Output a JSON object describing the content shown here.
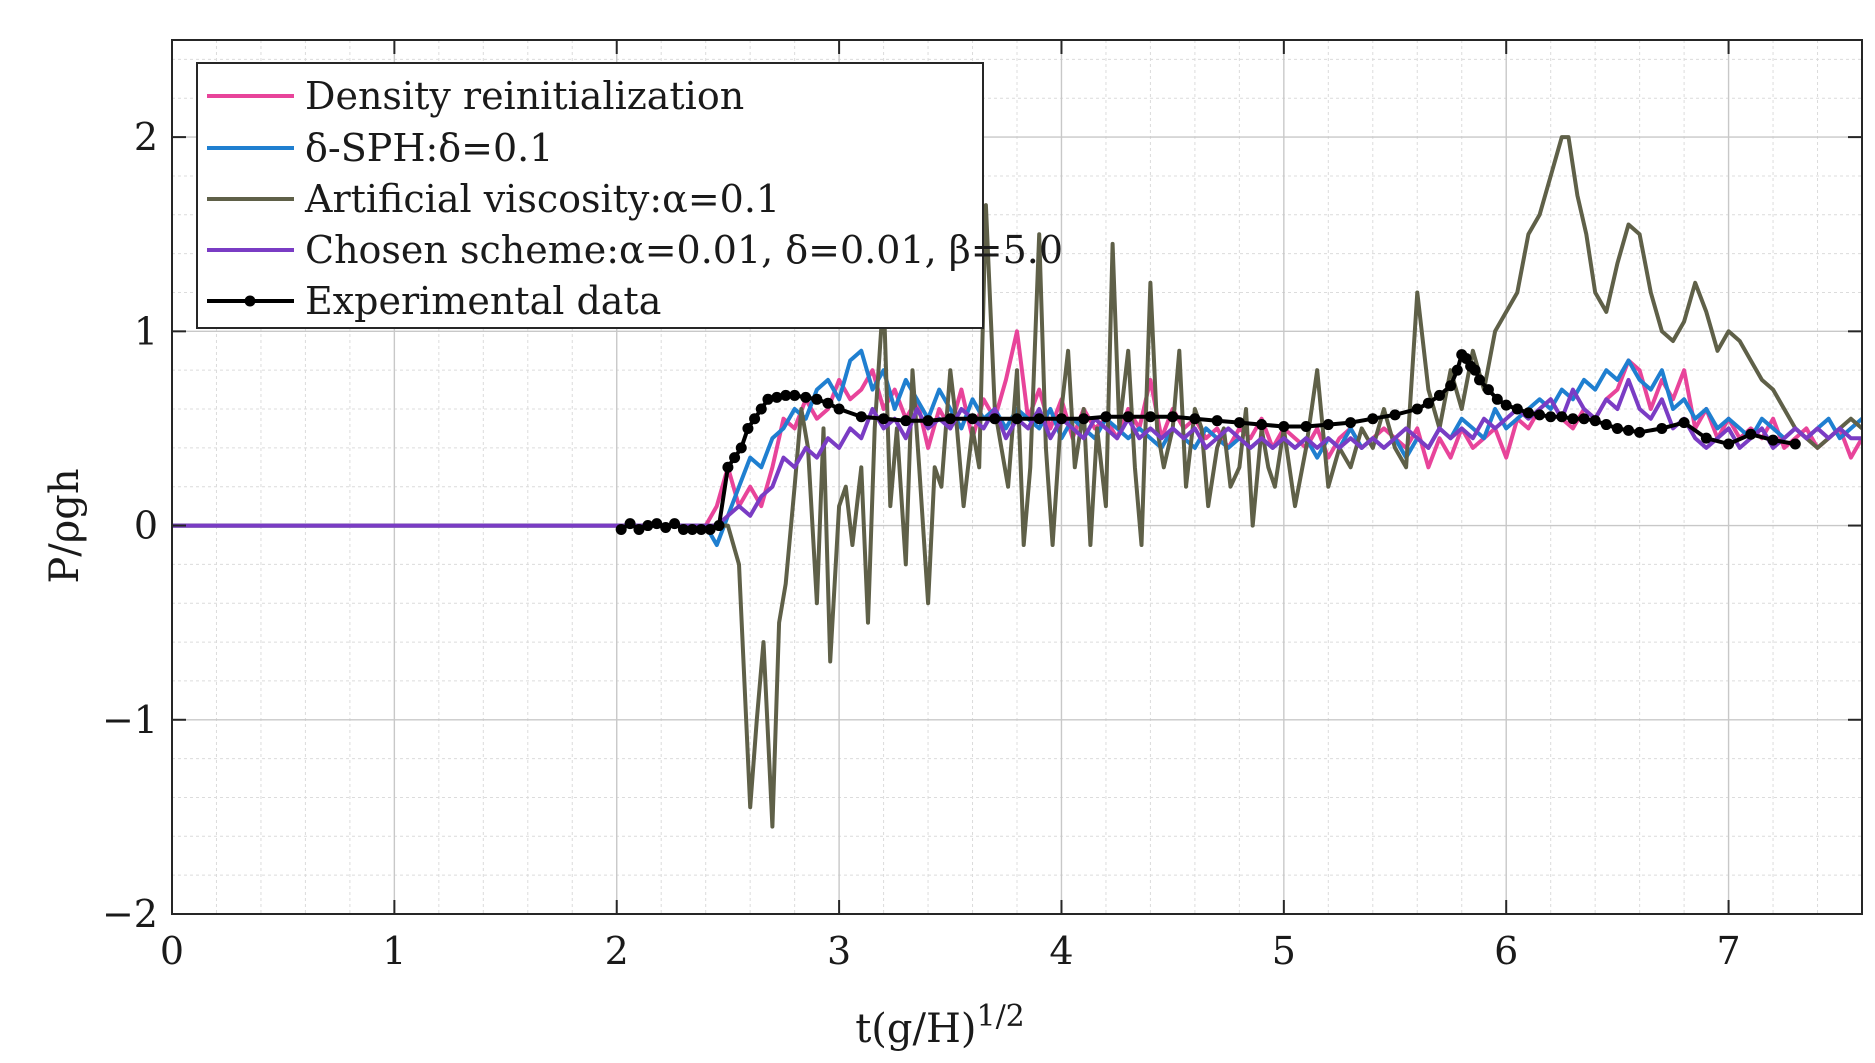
{
  "chart_data": {
    "type": "line",
    "xlabel": "t(g/H)",
    "xlabel_exponent": "1/2",
    "ylabel": "P/ρgh",
    "xlim": [
      0,
      7.6
    ],
    "ylim": [
      -2,
      2.5
    ],
    "xticks": [
      0,
      1,
      2,
      3,
      4,
      5,
      6,
      7
    ],
    "yticks": [
      -2,
      -1,
      0,
      1,
      2
    ],
    "xtick_labels": [
      "0",
      "1",
      "2",
      "3",
      "4",
      "5",
      "6",
      "7"
    ],
    "ytick_labels": [
      "−2",
      "−1",
      "0",
      "1",
      "2"
    ],
    "grid": true,
    "minor_grid": true,
    "legend_location": "top-left",
    "series": [
      {
        "name": "Density reinitialization",
        "color": "#e8449a",
        "marker": false,
        "x": [
          0,
          2.4,
          2.45,
          2.5,
          2.55,
          2.6,
          2.65,
          2.7,
          2.75,
          2.8,
          2.85,
          2.9,
          2.95,
          3.0,
          3.05,
          3.1,
          3.15,
          3.2,
          3.25,
          3.3,
          3.35,
          3.4,
          3.45,
          3.5,
          3.55,
          3.6,
          3.65,
          3.7,
          3.75,
          3.8,
          3.85,
          3.9,
          3.95,
          4.0,
          4.05,
          4.1,
          4.15,
          4.2,
          4.25,
          4.3,
          4.35,
          4.4,
          4.45,
          4.5,
          4.55,
          4.6,
          4.65,
          4.7,
          4.75,
          4.8,
          4.85,
          4.9,
          4.95,
          5.0,
          5.05,
          5.1,
          5.15,
          5.2,
          5.25,
          5.3,
          5.35,
          5.4,
          5.45,
          5.5,
          5.55,
          5.6,
          5.65,
          5.7,
          5.75,
          5.8,
          5.85,
          5.9,
          5.95,
          6.0,
          6.05,
          6.1,
          6.15,
          6.2,
          6.25,
          6.3,
          6.35,
          6.4,
          6.45,
          6.5,
          6.55,
          6.6,
          6.65,
          6.7,
          6.75,
          6.8,
          6.85,
          6.9,
          6.95,
          7.0,
          7.05,
          7.1,
          7.15,
          7.2,
          7.25,
          7.3,
          7.35,
          7.4,
          7.45,
          7.5,
          7.55,
          7.6
        ],
        "y": [
          0,
          0,
          0.1,
          0.3,
          0.1,
          0.2,
          0.1,
          0.3,
          0.55,
          0.5,
          0.65,
          0.55,
          0.6,
          0.75,
          0.65,
          0.7,
          0.8,
          0.6,
          0.7,
          0.55,
          0.65,
          0.4,
          0.6,
          0.5,
          0.7,
          0.45,
          0.65,
          0.55,
          0.75,
          1.0,
          0.55,
          0.7,
          0.5,
          0.65,
          0.45,
          0.6,
          0.5,
          0.55,
          0.45,
          0.6,
          0.5,
          0.75,
          0.45,
          0.6,
          0.5,
          0.55,
          0.45,
          0.5,
          0.4,
          0.5,
          0.45,
          0.55,
          0.4,
          0.5,
          0.45,
          0.4,
          0.5,
          0.35,
          0.45,
          0.5,
          0.4,
          0.45,
          0.5,
          0.45,
          0.4,
          0.5,
          0.3,
          0.45,
          0.35,
          0.5,
          0.4,
          0.45,
          0.5,
          0.35,
          0.55,
          0.5,
          0.6,
          0.65,
          0.55,
          0.5,
          0.6,
          0.55,
          0.65,
          0.7,
          0.85,
          0.8,
          0.6,
          0.75,
          0.65,
          0.8,
          0.5,
          0.6,
          0.45,
          0.55,
          0.45,
          0.5,
          0.45,
          0.55,
          0.4,
          0.45,
          0.5,
          0.4,
          0.45,
          0.5,
          0.35,
          0.45
        ]
      },
      {
        "name": "δ-SPH:δ=0.1",
        "color": "#1f7fd0",
        "marker": false,
        "x": [
          0,
          2.4,
          2.45,
          2.5,
          2.55,
          2.6,
          2.65,
          2.7,
          2.75,
          2.8,
          2.85,
          2.9,
          2.95,
          3.0,
          3.05,
          3.1,
          3.15,
          3.2,
          3.25,
          3.3,
          3.35,
          3.4,
          3.45,
          3.5,
          3.55,
          3.6,
          3.65,
          3.7,
          3.75,
          3.8,
          3.85,
          3.9,
          3.95,
          4.0,
          4.05,
          4.1,
          4.15,
          4.2,
          4.25,
          4.3,
          4.35,
          4.4,
          4.45,
          4.5,
          4.55,
          4.6,
          4.65,
          4.7,
          4.75,
          4.8,
          4.85,
          4.9,
          4.95,
          5.0,
          5.05,
          5.1,
          5.15,
          5.2,
          5.25,
          5.3,
          5.35,
          5.4,
          5.45,
          5.5,
          5.55,
          5.6,
          5.65,
          5.7,
          5.75,
          5.8,
          5.85,
          5.9,
          5.95,
          6.0,
          6.05,
          6.1,
          6.15,
          6.2,
          6.25,
          6.3,
          6.35,
          6.4,
          6.45,
          6.5,
          6.55,
          6.6,
          6.65,
          6.7,
          6.75,
          6.8,
          6.85,
          6.9,
          6.95,
          7.0,
          7.05,
          7.1,
          7.15,
          7.2,
          7.25,
          7.3,
          7.35,
          7.4,
          7.45,
          7.5,
          7.55,
          7.6
        ],
        "y": [
          0,
          0,
          -0.1,
          0.05,
          0.2,
          0.35,
          0.3,
          0.45,
          0.5,
          0.6,
          0.55,
          0.7,
          0.75,
          0.65,
          0.85,
          0.9,
          0.7,
          0.8,
          0.6,
          0.75,
          0.65,
          0.55,
          0.7,
          0.6,
          0.5,
          0.65,
          0.55,
          0.6,
          0.5,
          0.6,
          0.55,
          0.5,
          0.6,
          0.45,
          0.55,
          0.5,
          0.45,
          0.55,
          0.5,
          0.45,
          0.5,
          0.45,
          0.4,
          0.5,
          0.45,
          0.4,
          0.5,
          0.45,
          0.4,
          0.45,
          0.4,
          0.45,
          0.4,
          0.45,
          0.4,
          0.45,
          0.35,
          0.45,
          0.4,
          0.5,
          0.4,
          0.45,
          0.4,
          0.45,
          0.35,
          0.45,
          0.4,
          0.5,
          0.45,
          0.55,
          0.5,
          0.45,
          0.6,
          0.5,
          0.55,
          0.6,
          0.65,
          0.6,
          0.7,
          0.65,
          0.75,
          0.7,
          0.8,
          0.75,
          0.85,
          0.75,
          0.7,
          0.8,
          0.6,
          0.65,
          0.55,
          0.6,
          0.5,
          0.55,
          0.5,
          0.45,
          0.55,
          0.5,
          0.45,
          0.5,
          0.45,
          0.5,
          0.55,
          0.45,
          0.5,
          0.55
        ]
      },
      {
        "name": "Artificial viscosity:α=0.1",
        "color": "#5f6048",
        "marker": false,
        "x": [
          0,
          2.5,
          2.55,
          2.6,
          2.63,
          2.66,
          2.7,
          2.73,
          2.76,
          2.8,
          2.83,
          2.86,
          2.9,
          2.93,
          2.96,
          3.0,
          3.03,
          3.06,
          3.1,
          3.13,
          3.16,
          3.2,
          3.23,
          3.26,
          3.3,
          3.33,
          3.36,
          3.4,
          3.43,
          3.46,
          3.5,
          3.53,
          3.56,
          3.6,
          3.63,
          3.66,
          3.7,
          3.73,
          3.76,
          3.8,
          3.83,
          3.86,
          3.9,
          3.93,
          3.96,
          4.0,
          4.03,
          4.06,
          4.1,
          4.13,
          4.16,
          4.2,
          4.23,
          4.26,
          4.3,
          4.33,
          4.36,
          4.4,
          4.43,
          4.46,
          4.5,
          4.53,
          4.56,
          4.6,
          4.63,
          4.66,
          4.7,
          4.73,
          4.76,
          4.8,
          4.83,
          4.86,
          4.9,
          4.93,
          4.96,
          5.0,
          5.05,
          5.1,
          5.15,
          5.2,
          5.25,
          5.3,
          5.35,
          5.4,
          5.45,
          5.5,
          5.55,
          5.6,
          5.65,
          5.7,
          5.75,
          5.8,
          5.85,
          5.9,
          5.95,
          6.0,
          6.05,
          6.1,
          6.15,
          6.2,
          6.25,
          6.28,
          6.32,
          6.36,
          6.4,
          6.45,
          6.5,
          6.55,
          6.6,
          6.65,
          6.7,
          6.75,
          6.8,
          6.85,
          6.9,
          6.95,
          7.0,
          7.05,
          7.1,
          7.15,
          7.2,
          7.25,
          7.3,
          7.35,
          7.4,
          7.45,
          7.5,
          7.55,
          7.6
        ],
        "y": [
          0,
          0,
          -0.2,
          -1.45,
          -1.0,
          -0.6,
          -1.55,
          -0.5,
          -0.3,
          0.2,
          0.6,
          0.4,
          -0.4,
          0.5,
          -0.7,
          0.1,
          0.2,
          -0.1,
          0.3,
          -0.5,
          0.5,
          1.2,
          0.1,
          0.5,
          -0.2,
          0.8,
          0.3,
          -0.4,
          0.3,
          0.2,
          0.8,
          0.5,
          0.1,
          0.5,
          0.3,
          1.65,
          0.6,
          0.4,
          0.2,
          0.8,
          -0.1,
          0.3,
          1.5,
          0.4,
          -0.1,
          0.6,
          0.9,
          0.3,
          0.6,
          -0.1,
          0.5,
          0.1,
          1.45,
          0.5,
          0.9,
          0.3,
          -0.1,
          1.25,
          0.5,
          0.3,
          0.5,
          0.9,
          0.2,
          0.6,
          0.5,
          0.1,
          0.4,
          0.5,
          0.2,
          0.3,
          0.6,
          0.0,
          0.5,
          0.3,
          0.2,
          0.5,
          0.1,
          0.4,
          0.8,
          0.2,
          0.4,
          0.3,
          0.5,
          0.4,
          0.6,
          0.4,
          0.3,
          1.2,
          0.7,
          0.5,
          0.8,
          0.6,
          0.9,
          0.7,
          1.0,
          1.1,
          1.2,
          1.5,
          1.6,
          1.8,
          2.0,
          2.0,
          1.7,
          1.5,
          1.2,
          1.1,
          1.35,
          1.55,
          1.5,
          1.2,
          1.0,
          0.95,
          1.05,
          1.25,
          1.1,
          0.9,
          1.0,
          0.95,
          0.85,
          0.75,
          0.7,
          0.6,
          0.5,
          0.45,
          0.4,
          0.45,
          0.5,
          0.55,
          0.5
        ]
      },
      {
        "name": "Chosen scheme:α=0.01, δ=0.01, β=5.0",
        "color": "#7a3cc4",
        "marker": false,
        "x": [
          0,
          2.45,
          2.5,
          2.55,
          2.6,
          2.65,
          2.7,
          2.75,
          2.8,
          2.85,
          2.9,
          2.95,
          3.0,
          3.05,
          3.1,
          3.15,
          3.2,
          3.25,
          3.3,
          3.35,
          3.4,
          3.45,
          3.5,
          3.55,
          3.6,
          3.65,
          3.7,
          3.75,
          3.8,
          3.85,
          3.9,
          3.95,
          4.0,
          4.05,
          4.1,
          4.15,
          4.2,
          4.25,
          4.3,
          4.35,
          4.4,
          4.45,
          4.5,
          4.55,
          4.6,
          4.65,
          4.7,
          4.75,
          4.8,
          4.85,
          4.9,
          4.95,
          5.0,
          5.05,
          5.1,
          5.15,
          5.2,
          5.25,
          5.3,
          5.35,
          5.4,
          5.45,
          5.5,
          5.55,
          5.6,
          5.65,
          5.7,
          5.75,
          5.8,
          5.85,
          5.9,
          5.95,
          6.0,
          6.05,
          6.1,
          6.15,
          6.2,
          6.25,
          6.3,
          6.35,
          6.4,
          6.45,
          6.5,
          6.55,
          6.6,
          6.65,
          6.7,
          6.75,
          6.8,
          6.85,
          6.9,
          6.95,
          7.0,
          7.05,
          7.1,
          7.15,
          7.2,
          7.25,
          7.3,
          7.35,
          7.4,
          7.45,
          7.5,
          7.55,
          7.6
        ],
        "y": [
          0,
          0,
          0.05,
          0.1,
          0.05,
          0.15,
          0.2,
          0.35,
          0.3,
          0.4,
          0.35,
          0.45,
          0.4,
          0.5,
          0.45,
          0.6,
          0.5,
          0.55,
          0.45,
          0.6,
          0.5,
          0.55,
          0.5,
          0.6,
          0.55,
          0.5,
          0.6,
          0.45,
          0.55,
          0.5,
          0.6,
          0.45,
          0.55,
          0.5,
          0.45,
          0.55,
          0.5,
          0.45,
          0.55,
          0.45,
          0.5,
          0.45,
          0.5,
          0.45,
          0.5,
          0.4,
          0.45,
          0.5,
          0.45,
          0.4,
          0.45,
          0.4,
          0.45,
          0.4,
          0.45,
          0.4,
          0.45,
          0.4,
          0.45,
          0.4,
          0.45,
          0.4,
          0.45,
          0.5,
          0.45,
          0.4,
          0.5,
          0.45,
          0.5,
          0.45,
          0.55,
          0.5,
          0.55,
          0.6,
          0.55,
          0.6,
          0.65,
          0.55,
          0.7,
          0.6,
          0.55,
          0.65,
          0.6,
          0.75,
          0.6,
          0.55,
          0.65,
          0.5,
          0.55,
          0.45,
          0.4,
          0.45,
          0.5,
          0.4,
          0.45,
          0.5,
          0.4,
          0.45,
          0.5,
          0.45,
          0.5,
          0.45,
          0.5,
          0.45,
          0.45
        ]
      },
      {
        "name": "Experimental data",
        "color": "#000000",
        "marker": true,
        "x": [
          2.02,
          2.06,
          2.1,
          2.14,
          2.18,
          2.22,
          2.26,
          2.3,
          2.34,
          2.38,
          2.42,
          2.46,
          2.5,
          2.53,
          2.56,
          2.59,
          2.62,
          2.65,
          2.68,
          2.72,
          2.76,
          2.8,
          2.85,
          2.9,
          2.95,
          3.0,
          3.1,
          3.2,
          3.3,
          3.4,
          3.5,
          3.6,
          3.7,
          3.8,
          3.9,
          4.0,
          4.1,
          4.2,
          4.3,
          4.4,
          4.5,
          4.6,
          4.7,
          4.8,
          4.9,
          5.0,
          5.1,
          5.2,
          5.3,
          5.4,
          5.5,
          5.6,
          5.65,
          5.7,
          5.75,
          5.78,
          5.8,
          5.82,
          5.84,
          5.86,
          5.88,
          5.92,
          5.96,
          6.0,
          6.05,
          6.1,
          6.15,
          6.2,
          6.25,
          6.3,
          6.35,
          6.4,
          6.45,
          6.5,
          6.55,
          6.6,
          6.7,
          6.8,
          6.9,
          7.0,
          7.1,
          7.2,
          7.3
        ],
        "y": [
          -0.02,
          0.01,
          -0.02,
          0.0,
          0.01,
          -0.01,
          0.01,
          -0.02,
          -0.02,
          -0.02,
          -0.02,
          0.0,
          0.3,
          0.35,
          0.4,
          0.5,
          0.55,
          0.6,
          0.65,
          0.66,
          0.67,
          0.67,
          0.66,
          0.65,
          0.63,
          0.6,
          0.56,
          0.55,
          0.54,
          0.54,
          0.55,
          0.55,
          0.55,
          0.55,
          0.55,
          0.55,
          0.55,
          0.56,
          0.56,
          0.56,
          0.56,
          0.55,
          0.54,
          0.53,
          0.52,
          0.51,
          0.51,
          0.52,
          0.53,
          0.55,
          0.57,
          0.6,
          0.63,
          0.67,
          0.72,
          0.8,
          0.88,
          0.86,
          0.82,
          0.8,
          0.75,
          0.7,
          0.65,
          0.62,
          0.6,
          0.58,
          0.57,
          0.56,
          0.56,
          0.55,
          0.55,
          0.54,
          0.52,
          0.5,
          0.49,
          0.48,
          0.5,
          0.53,
          0.45,
          0.42,
          0.47,
          0.44,
          0.42
        ]
      }
    ]
  }
}
